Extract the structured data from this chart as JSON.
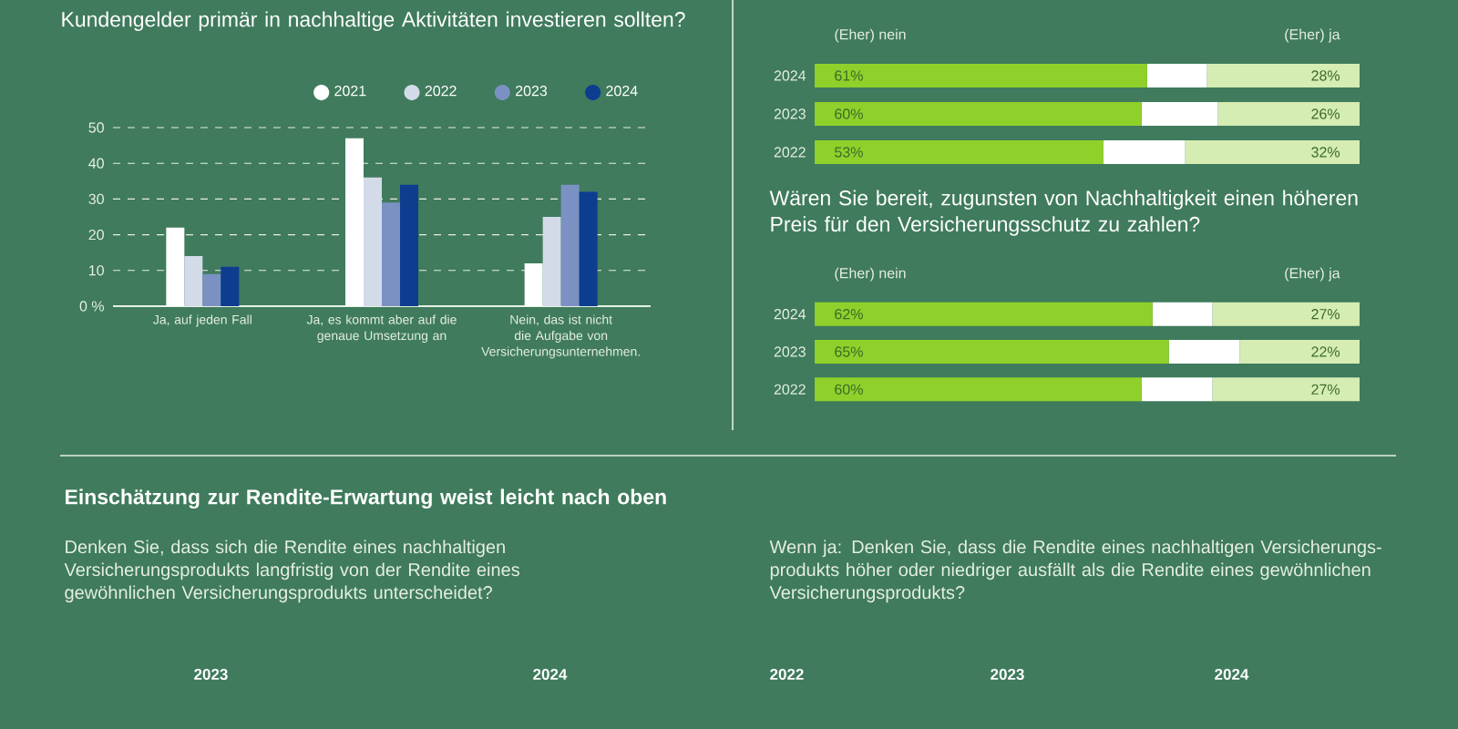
{
  "chart_data": [
    {
      "type": "bar",
      "title": "Kundengelder primär in nachhaltige Aktivitäten investieren sollten?",
      "categories": [
        "Ja, auf jeden Fall",
        "Ja, es kommt aber auf die genaue Umsetzung an",
        "Nein, das ist nicht die Aufgabe von Versicherungsunternehmen."
      ],
      "series": [
        {
          "name": "2021",
          "color": "#ffffff",
          "values": [
            22,
            47,
            12
          ]
        },
        {
          "name": "2022",
          "color": "#d3dbe9",
          "values": [
            14,
            36,
            25
          ]
        },
        {
          "name": "2023",
          "color": "#7b91c3",
          "values": [
            9,
            29,
            34
          ]
        },
        {
          "name": "2024",
          "color": "#0d3d8f",
          "values": [
            11,
            34,
            32
          ]
        }
      ],
      "ylim": [
        0,
        50
      ],
      "yticks": [
        {
          "value": 0,
          "label": "0 %"
        },
        10,
        20,
        30,
        40,
        50
      ],
      "grid": "y",
      "legend": "top right"
    },
    {
      "type": "bar",
      "orientation": "horizontal",
      "stacked": true,
      "categories": [
        "2024",
        "2023",
        "2022"
      ],
      "series": [
        {
          "name": "(Eher) nein",
          "color": "#8fd12a",
          "values": [
            61,
            60,
            53
          ],
          "value_labels": [
            "61%",
            "60%",
            "53%"
          ]
        },
        {
          "color": "#ffffff",
          "values": [
            11,
            14,
            15
          ]
        },
        {
          "name": "(Eher) ja",
          "color": "#d5ecb3",
          "values": [
            28,
            26,
            32
          ],
          "value_labels": [
            "28%",
            "26%",
            "32%"
          ]
        }
      ],
      "tick_labels": "y"
    },
    {
      "type": "bar",
      "orientation": "horizontal",
      "stacked": true,
      "title": "Wären Sie bereit, zugunsten von Nachhaltigkeit einen höheren Preis für den Versicherungsschutz zu zahlen?",
      "categories": [
        "2024",
        "2023",
        "2022"
      ],
      "series": [
        {
          "name": "(Eher) nein",
          "color": "#8fd12a",
          "values": [
            62,
            65,
            60
          ],
          "value_labels": [
            "62%",
            "65%",
            "60%"
          ]
        },
        {
          "color": "#ffffff",
          "values": [
            11,
            13,
            13
          ]
        },
        {
          "name": "(Eher) ja",
          "color": "#d5ecb3",
          "values": [
            27,
            22,
            27
          ],
          "value_labels": [
            "27%",
            "22%",
            "27%"
          ]
        }
      ],
      "tick_labels": "y"
    },
    {
      "type": "other",
      "title": "Einschätzung zur Rendite-Erwartung weist leicht nach oben",
      "subtitle": "Denken Sie, dass sich die Rendite eines nachhaltigen Versicherungsprodukts langfristig von der Rendite eines gewöhnlichen Versicherungsprodukts unterscheidet?",
      "annotations": [
        "2023",
        "2024"
      ]
    },
    {
      "type": "other",
      "subtitle": "Wenn ja: Denken Sie, dass die Rendite eines nachhaltigen Versicherungs-produkts höher oder niedriger ausfällt als die Rendite eines gewöhnlichen Versicherungsprodukts?",
      "annotations": [
        "2022",
        "2023",
        "2024"
      ]
    }
  ]
}
